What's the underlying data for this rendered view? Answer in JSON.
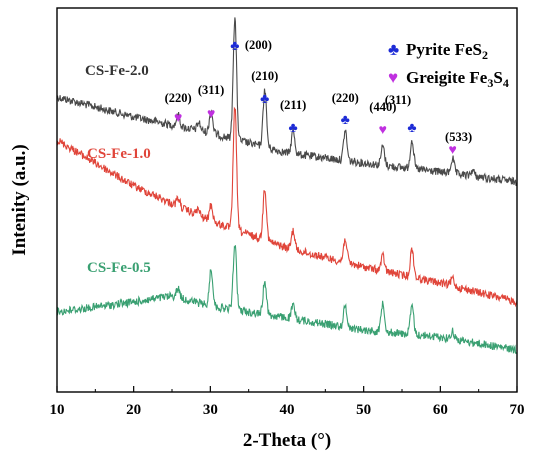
{
  "chart_data": {
    "type": "line",
    "xlabel": "2-Theta (°)",
    "ylabel": "Intenity (a.u.)",
    "xlim": [
      10,
      70
    ],
    "x_ticks": [
      10,
      20,
      30,
      40,
      50,
      60,
      70
    ],
    "grid": false,
    "legend_position": "top-right",
    "legend": [
      {
        "symbol": "♣",
        "color": "#1d2bd6",
        "label": "Pyrite FeS",
        "sub": "2",
        "label_after": ""
      },
      {
        "symbol": "♥",
        "color": "#c030e0",
        "label": "Greigite Fe",
        "sub": "3",
        "label_after": "S",
        "sub2": "4"
      }
    ],
    "series": [
      {
        "name": "CS-Fe-2.0",
        "color": "#4a4a4a",
        "label_color": "#333333",
        "baseline": [
          [
            10,
            97
          ],
          [
            20,
            117
          ],
          [
            30,
            133
          ],
          [
            40,
            153
          ],
          [
            50,
            163
          ],
          [
            60,
            172
          ],
          [
            70,
            182
          ]
        ],
        "peaks": [
          [
            25.8,
            11
          ],
          [
            28.5,
            8
          ],
          [
            30.1,
            22
          ],
          [
            33.2,
            121
          ],
          [
            37.1,
            58
          ],
          [
            40.8,
            23
          ],
          [
            47.6,
            30
          ],
          [
            52.5,
            19
          ],
          [
            56.3,
            29
          ],
          [
            61.6,
            15
          ],
          [
            64.2,
            6
          ]
        ]
      },
      {
        "name": "CS-Fe-1.0",
        "color": "#e0453a",
        "label_color": "#e0453a",
        "baseline": [
          [
            10,
            140
          ],
          [
            20,
            186
          ],
          [
            30,
            221
          ],
          [
            40,
            248
          ],
          [
            50,
            267
          ],
          [
            60,
            283
          ],
          [
            70,
            302
          ]
        ],
        "peaks": [
          [
            25.8,
            8
          ],
          [
            28.4,
            6
          ],
          [
            30.1,
            16
          ],
          [
            33.2,
            123
          ],
          [
            37.1,
            53
          ],
          [
            40.8,
            19
          ],
          [
            47.6,
            24
          ],
          [
            52.5,
            15
          ],
          [
            56.3,
            28
          ],
          [
            61.6,
            8
          ]
        ]
      },
      {
        "name": "CS-Fe-0.5",
        "color": "#3aa072",
        "label_color": "#3aa072",
        "baseline": [
          [
            10,
            312
          ],
          [
            20,
            302
          ],
          [
            25,
            296
          ],
          [
            30,
            306
          ],
          [
            40,
            318
          ],
          [
            50,
            330
          ],
          [
            60,
            337
          ],
          [
            70,
            350
          ]
        ],
        "peaks": [
          [
            25.8,
            9
          ],
          [
            30.1,
            37
          ],
          [
            33.2,
            65
          ],
          [
            37.1,
            34
          ],
          [
            40.8,
            13
          ],
          [
            47.6,
            21
          ],
          [
            52.5,
            30
          ],
          [
            56.3,
            28
          ],
          [
            61.6,
            8
          ]
        ]
      }
    ],
    "annotations": [
      {
        "text": "(220)",
        "x": 25.8,
        "marker": "♥",
        "color": "#c030e0"
      },
      {
        "text": "(311)",
        "x": 30.1,
        "marker": "♥",
        "color": "#c030e0"
      },
      {
        "text": "(200)",
        "x": 33.2,
        "marker": "♣",
        "color": "#1d2bd6"
      },
      {
        "text": "(210)",
        "x": 37.1,
        "marker": "♣",
        "color": "#1d2bd6"
      },
      {
        "text": "(211)",
        "x": 40.8,
        "marker": "♣",
        "color": "#1d2bd6"
      },
      {
        "text": "(220)",
        "x": 47.6,
        "marker": "♣",
        "color": "#1d2bd6"
      },
      {
        "text": "(440)",
        "x": 52.5,
        "marker": "♥",
        "color": "#c030e0"
      },
      {
        "text": "(311)",
        "x": 56.3,
        "marker": "♣",
        "color": "#1d2bd6"
      },
      {
        "text": "(533)",
        "x": 61.6,
        "marker": "♥",
        "color": "#c030e0"
      }
    ]
  }
}
